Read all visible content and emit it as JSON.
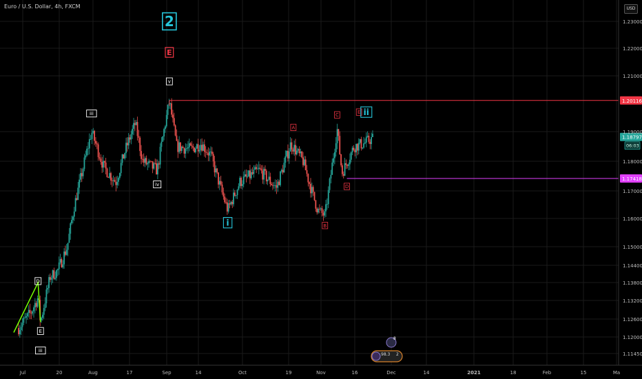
{
  "header": {
    "symbol_title": "Euro / U.S. Dollar, 4h, FXCM",
    "currency": "USD"
  },
  "colors": {
    "background": "#000000",
    "grid": "#1a1a1a",
    "up_candle": "#26a69a",
    "down_candle": "#ef5350",
    "resistance_line": "#f23645",
    "support_line": "#e040fb",
    "cyan_label": "#26c6da",
    "red_label": "#f23645",
    "white_label": "#ffffff",
    "trend_line": "#76ff03",
    "last_price_tag": "#26a69a"
  },
  "chart_data": {
    "type": "candlestick",
    "y_axis": {
      "ticks": [
        "1.23000",
        "1.22000",
        "1.21000",
        "1.19000",
        "1.18000",
        "1.17000",
        "1.16000",
        "1.15000",
        "1.14400",
        "1.13800",
        "1.13200",
        "1.12600",
        "1.12000",
        "1.11450"
      ],
      "range": [
        1.1115,
        1.2345
      ]
    },
    "x_axis": {
      "ticks": [
        "Jul",
        "20",
        "Aug",
        "17",
        "Sep",
        "14",
        "Oct",
        "19",
        "Nov",
        "16",
        "Dec",
        "14",
        "2021",
        "18",
        "Feb",
        "15",
        "Ma"
      ]
    },
    "price_path": [
      [
        "Jul 1",
        1.123
      ],
      [
        "Jul 6",
        1.128
      ],
      [
        "Jul 9",
        1.133
      ],
      [
        "Jul 10",
        1.125
      ],
      [
        "Jul 14",
        1.14
      ],
      [
        "Jul 17",
        1.142
      ],
      [
        "Jul 21",
        1.15
      ],
      [
        "Jul 24",
        1.165
      ],
      [
        "Jul 27",
        1.176
      ],
      [
        "Jul 31",
        1.19
      ],
      [
        "Aug 5",
        1.178
      ],
      [
        "Aug 10",
        1.173
      ],
      [
        "Aug 14",
        1.184
      ],
      [
        "Aug 18",
        1.193
      ],
      [
        "Aug 21",
        1.18
      ],
      [
        "Aug 27",
        1.177
      ],
      [
        "Sep 1",
        1.201
      ],
      [
        "Sep 4",
        1.185
      ],
      [
        "Sep 10",
        1.184
      ],
      [
        "Sep 14",
        1.186
      ],
      [
        "Sep 18",
        1.182
      ],
      [
        "Sep 25",
        1.163
      ],
      [
        "Sep 30",
        1.173
      ],
      [
        "Oct 8",
        1.177
      ],
      [
        "Oct 15",
        1.171
      ],
      [
        "Oct 21",
        1.186
      ],
      [
        "Oct 26",
        1.18
      ],
      [
        "Nov 1",
        1.163
      ],
      [
        "Nov 4",
        1.161
      ],
      [
        "Nov 9",
        1.191
      ],
      [
        "Nov 11",
        1.176
      ],
      [
        "Nov 16",
        1.185
      ],
      [
        "Nov 20",
        1.186
      ],
      [
        "Nov 24",
        1.188
      ]
    ],
    "levels": [
      {
        "price": 1.20116,
        "label": "1.20116",
        "color": "#f23645",
        "from": "Sep 1"
      },
      {
        "price": 1.17418,
        "label": "1.17418",
        "color": "#e040fb",
        "from": "Nov 13"
      }
    ],
    "last_price": {
      "price": 1.18797,
      "label": "1.18797",
      "countdown": "06:03"
    },
    "trend_line": [
      [
        "Jun 29",
        1.1215
      ],
      [
        "Jul 9",
        1.138
      ],
      [
        "Jul 10",
        1.125
      ]
    ],
    "wave_labels": [
      {
        "text": "2",
        "date": "Sep 1",
        "price": 1.23,
        "style": "cyan-big"
      },
      {
        "text": "E",
        "date": "Sep 1",
        "price": 1.2185,
        "style": "red-box"
      },
      {
        "text": "v",
        "date": "Sep 1",
        "price": 1.208,
        "style": "white-box"
      },
      {
        "text": "iii",
        "date": "Jul 31",
        "price": 1.1965,
        "style": "white-box"
      },
      {
        "text": "iv",
        "date": "Aug 27",
        "price": 1.1722,
        "style": "white-box"
      },
      {
        "text": "i",
        "date": "Sep 25",
        "price": 1.1585,
        "style": "cyan-box"
      },
      {
        "text": "A",
        "date": "Oct 22",
        "price": 1.1915,
        "style": "red-small"
      },
      {
        "text": "B",
        "date": "Nov 4",
        "price": 1.1575,
        "style": "red-small"
      },
      {
        "text": "C",
        "date": "Nov 9",
        "price": 1.196,
        "style": "red-small"
      },
      {
        "text": "D",
        "date": "Nov 13",
        "price": 1.1715,
        "style": "red-small"
      },
      {
        "text": "E",
        "date": "Nov 18",
        "price": 1.197,
        "style": "red-small"
      },
      {
        "text": "ii",
        "date": "Nov 21",
        "price": 1.197,
        "style": "cyan-box"
      },
      {
        "text": "D",
        "date": "Jul 9",
        "price": 1.1385,
        "style": "white-box"
      },
      {
        "text": "E",
        "date": "Jul 10",
        "price": 1.122,
        "style": "white-box"
      },
      {
        "text": "iii",
        "date": "Jul 10",
        "price": 1.1155,
        "style": "white-box"
      }
    ],
    "badge": {
      "count": "8",
      "text": "98.3",
      "extra": "2"
    }
  }
}
